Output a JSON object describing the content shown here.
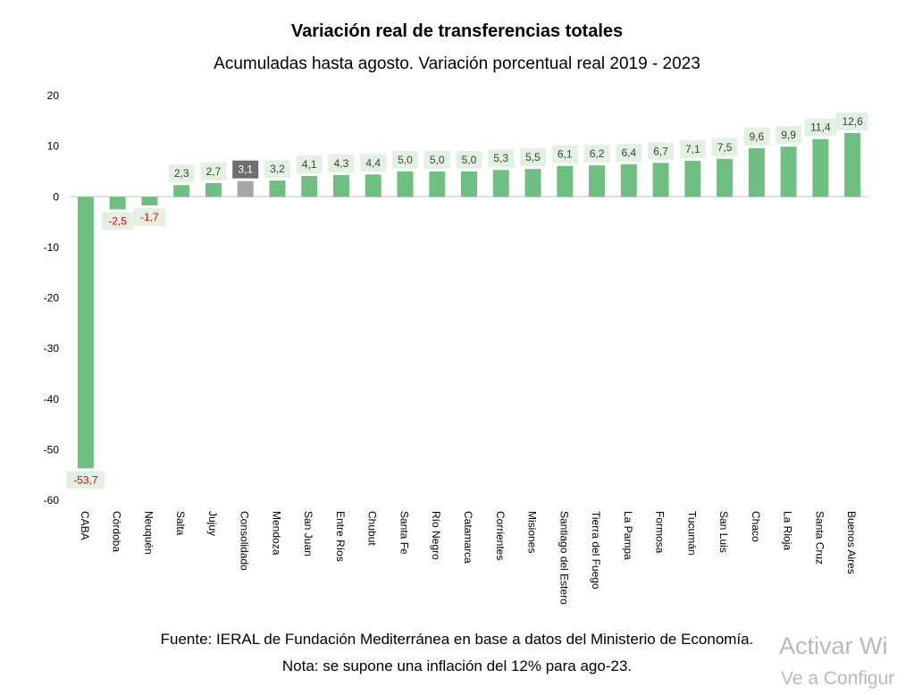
{
  "chart_data": {
    "type": "bar",
    "title": "Variación real de transferencias totales",
    "subtitle": "Acumuladas hasta agosto. Variación porcentual real 2019 - 2023",
    "xlabel": "",
    "ylabel": "",
    "ylim": [
      -60,
      20
    ],
    "yticks": [
      20,
      10,
      0,
      -10,
      -20,
      -30,
      -40,
      -50,
      -60
    ],
    "grid": false,
    "categories": [
      "CABA",
      "Córdoba",
      "Neuquén",
      "Salta",
      "Jujuy",
      "Consolidado",
      "Mendoza",
      "San Juan",
      "Entre Ríos",
      "Chubut",
      "Santa Fe",
      "Río Negro",
      "Catamarca",
      "Corrientes",
      "Misiones",
      "Santiago del Estero",
      "Tierra del Fuego",
      "La Pampa",
      "Formosa",
      "Tucumán",
      "San Luis",
      "Chaco",
      "La Rioja",
      "Santa Cruz",
      "Buenos Aires"
    ],
    "values": [
      -53.7,
      -2.5,
      -1.7,
      2.3,
      2.7,
      3.1,
      3.2,
      4.1,
      4.3,
      4.4,
      5.0,
      5.0,
      5.0,
      5.3,
      5.5,
      6.1,
      6.2,
      6.4,
      6.7,
      7.1,
      7.5,
      9.6,
      9.9,
      11.4,
      12.6
    ],
    "labels": [
      "-53,7",
      "-2,5",
      "-1,7",
      "2,3",
      "2,7",
      "3,1",
      "3,2",
      "4,1",
      "4,3",
      "4,4",
      "5,0",
      "5,0",
      "5,0",
      "5,3",
      "5,5",
      "6,1",
      "6,2",
      "6,4",
      "6,7",
      "7,1",
      "7,5",
      "9,6",
      "9,9",
      "11,4",
      "12,6"
    ],
    "highlight_category": "Consolidado",
    "colors": {
      "bar": "#70bf82",
      "highlight_bar": "#a6a6a6",
      "label_bg": "#e3f1e3",
      "highlight_label_bg": "#6e6e6e",
      "label_text": "#404040",
      "negative_label_text": "#e60000",
      "highlight_label_text": "#ffffff",
      "axis_line": "#d9d9d9"
    }
  },
  "footer": {
    "source": "Fuente: IERAL de Fundación Mediterránea en base a datos del Ministerio de Economía.",
    "note": "Nota: se supone una inflación del 12% para ago-23."
  },
  "watermark": {
    "line1": "Activar Wi",
    "line2": "Ve a Configur"
  }
}
